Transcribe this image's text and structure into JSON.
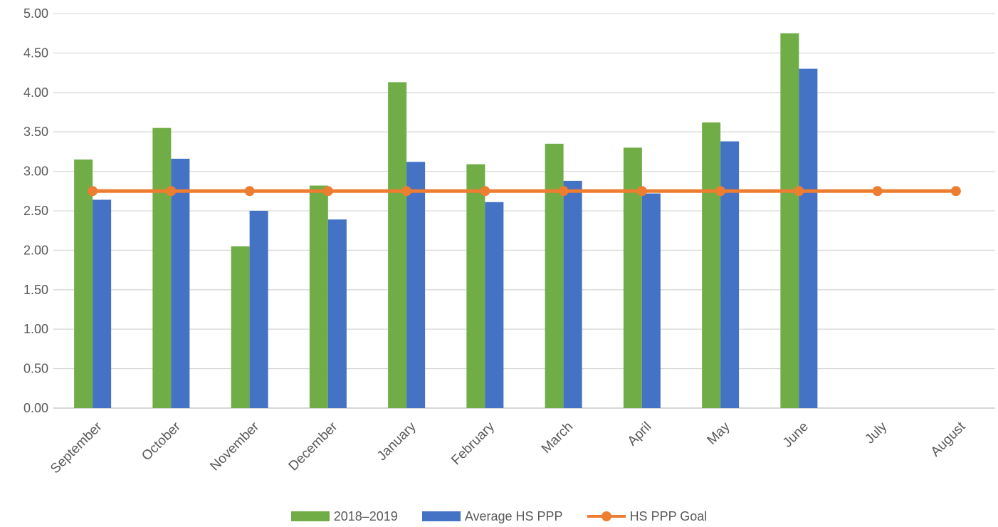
{
  "chart_data": {
    "type": "bar",
    "categories": [
      "September",
      "October",
      "November",
      "December",
      "January",
      "February",
      "March",
      "April",
      "May",
      "June",
      "July",
      "August"
    ],
    "series": [
      {
        "name": "2018–2019",
        "type": "bar",
        "color": "#70AD47",
        "values": [
          3.15,
          3.55,
          2.05,
          2.82,
          4.13,
          3.09,
          3.35,
          3.3,
          3.62,
          4.75,
          null,
          null
        ]
      },
      {
        "name": "Average HS PPP",
        "type": "bar",
        "color": "#4472C4",
        "values": [
          2.64,
          3.16,
          2.5,
          2.39,
          3.12,
          2.61,
          2.88,
          2.72,
          3.38,
          4.3,
          null,
          null
        ]
      },
      {
        "name": "HS PPP Goal",
        "type": "line",
        "color": "#ED7D31",
        "values": [
          2.75,
          2.75,
          2.75,
          2.75,
          2.75,
          2.75,
          2.75,
          2.75,
          2.75,
          2.75,
          2.75,
          2.75
        ]
      }
    ],
    "y_ticks": [
      "0.00",
      "0.50",
      "1.00",
      "1.50",
      "2.00",
      "2.50",
      "3.00",
      "3.50",
      "4.00",
      "4.50",
      "5.00"
    ],
    "ylim": [
      0,
      5
    ],
    "title": "",
    "xlabel": "",
    "ylabel": "",
    "grid": true,
    "legend_position": "bottom"
  }
}
